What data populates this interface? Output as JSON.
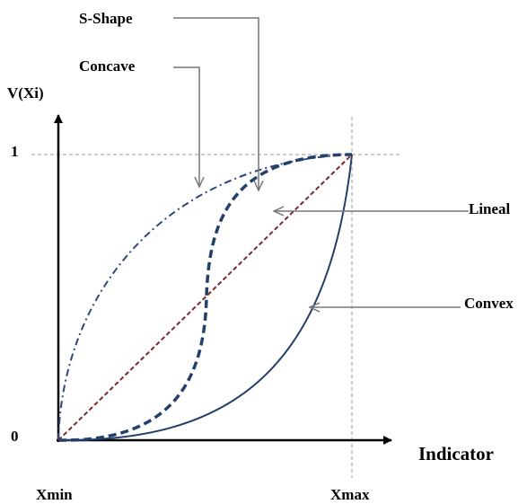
{
  "axis_labels": {
    "y": "V(Xi)",
    "x": "Indicator",
    "y_top": "1",
    "y_origin": "0",
    "x_min": "Xmin",
    "x_max": "Xmax"
  },
  "curves": [
    {
      "label": "S-Shape"
    },
    {
      "label": "Concave"
    },
    {
      "label": "Lineal"
    },
    {
      "label": "Convex"
    }
  ]
}
